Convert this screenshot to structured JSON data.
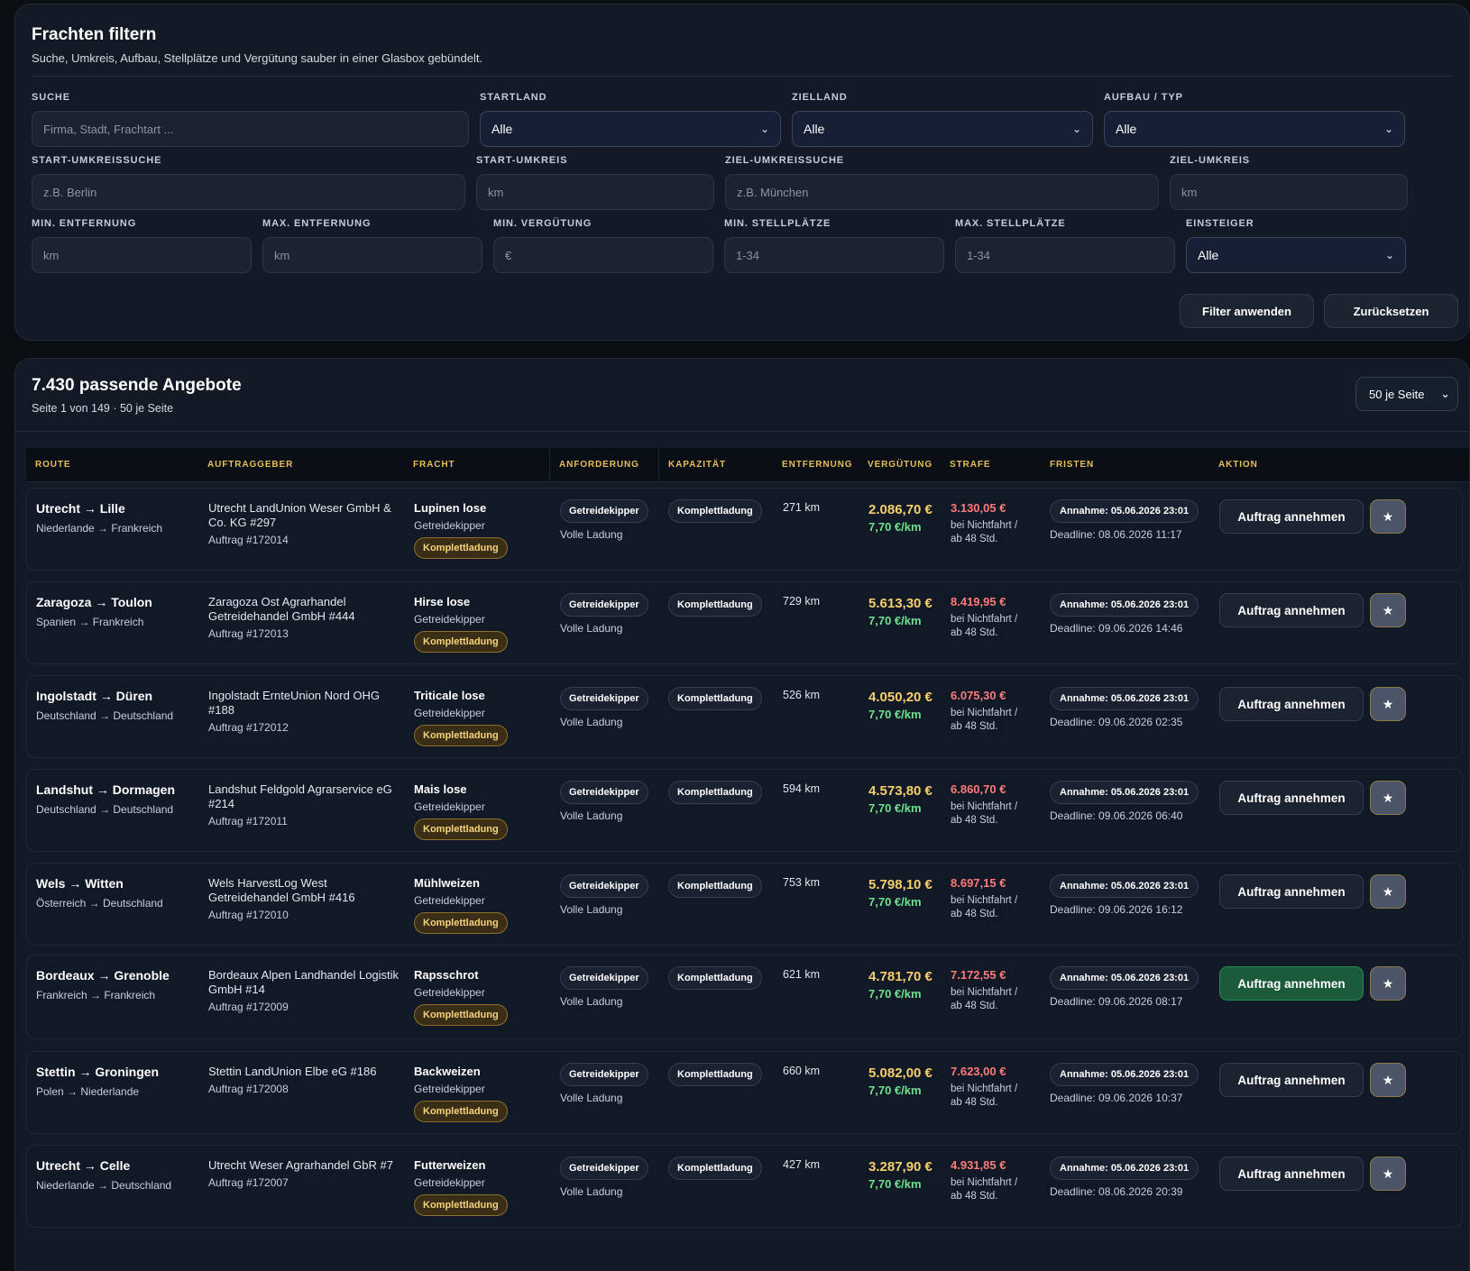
{
  "filter": {
    "title": "Frachten filtern",
    "subtitle": "Suche, Umkreis, Aufbau, Stellplätze und Vergütung sauber in einer Glasbox gebündelt.",
    "search": {
      "label": "SUCHE",
      "placeholder": "Firma, Stadt, Frachtart ..."
    },
    "start_country": {
      "label": "STARTLAND",
      "value": "Alle"
    },
    "target_country": {
      "label": "ZIELLAND",
      "value": "Alle"
    },
    "body_type": {
      "label": "AUFBAU / TYP",
      "value": "Alle"
    },
    "start_radius_search": {
      "label": "START-UMKREISSUCHE",
      "placeholder": "z.B. Berlin"
    },
    "start_radius": {
      "label": "START-UMKREIS",
      "placeholder": "km"
    },
    "target_radius_search": {
      "label": "ZIEL-UMKREISSUCHE",
      "placeholder": "z.B. München"
    },
    "target_radius": {
      "label": "ZIEL-UMKREIS",
      "placeholder": "km"
    },
    "min_distance": {
      "label": "MIN. ENTFERNUNG",
      "placeholder": "km"
    },
    "max_distance": {
      "label": "MAX. ENTFERNUNG",
      "placeholder": "km"
    },
    "min_pay": {
      "label": "MIN. VERGÜTUNG",
      "placeholder": "€"
    },
    "min_slots": {
      "label": "MIN. STELLPLÄTZE",
      "placeholder": "1-34"
    },
    "max_slots": {
      "label": "MAX. STELLPLÄTZE",
      "placeholder": "1-34"
    },
    "beginner": {
      "label": "EINSTEIGER",
      "value": "Alle"
    },
    "apply_label": "Filter anwenden",
    "reset_label": "Zurücksetzen"
  },
  "results": {
    "title": "7.430 passende Angebote",
    "subtitle": "Seite 1 von 149 · 50 je Seite",
    "per_page": "50 je Seite",
    "columns": [
      "ROUTE",
      "AUFTRAGGEBER",
      "FRACHT",
      "ANFORDERUNG",
      "KAPAZITÄT",
      "ENTFERNUNG",
      "VERGÜTUNG",
      "STRAFE",
      "FRISTEN",
      "AKTION"
    ],
    "rows": [
      {
        "route": "Utrecht → Lille",
        "countries": "Niederlande → Frankreich",
        "client": "Utrecht LandUnion Weser GmbH & Co. KG #297",
        "order": "Auftrag #172014",
        "cargo": "Lupinen lose",
        "cargo_type": "Getreidekipper",
        "cargo_badge": "Komplettladung",
        "req": "Getreidekipper",
        "req_sub": "Volle Ladung",
        "capacity": "Komplettladung",
        "distance": "271 km",
        "pay": "2.086,70 €",
        "per_km": "7,70 €/km",
        "penalty": "3.130,05 €",
        "penalty_sub": "bei Nichtfahrt / ab 48 Std.",
        "accept": "Annahme: 05.06.2026 23:01",
        "deadline": "Deadline: 08.06.2026 11:17",
        "action": "Auftrag annehmen",
        "star": "★"
      },
      {
        "route": "Zaragoza → Toulon",
        "countries": "Spanien → Frankreich",
        "client": "Zaragoza Ost Agrarhandel Getreidehandel GmbH #444",
        "order": "Auftrag #172013",
        "cargo": "Hirse lose",
        "cargo_type": "Getreidekipper",
        "cargo_badge": "Komplettladung",
        "req": "Getreidekipper",
        "req_sub": "Volle Ladung",
        "capacity": "Komplettladung",
        "distance": "729 km",
        "pay": "5.613,30 €",
        "per_km": "7,70 €/km",
        "penalty": "8.419,95 €",
        "penalty_sub": "bei Nichtfahrt / ab 48 Std.",
        "accept": "Annahme: 05.06.2026 23:01",
        "deadline": "Deadline: 09.06.2026 14:46",
        "action": "Auftrag annehmen",
        "star": "★"
      },
      {
        "route": "Ingolstadt → Düren",
        "countries": "Deutschland → Deutschland",
        "client": "Ingolstadt ErnteUnion Nord OHG #188",
        "order": "Auftrag #172012",
        "cargo": "Triticale lose",
        "cargo_type": "Getreidekipper",
        "cargo_badge": "Komplettladung",
        "req": "Getreidekipper",
        "req_sub": "Volle Ladung",
        "capacity": "Komplettladung",
        "distance": "526 km",
        "pay": "4.050,20 €",
        "per_km": "7,70 €/km",
        "penalty": "6.075,30 €",
        "penalty_sub": "bei Nichtfahrt / ab 48 Std.",
        "accept": "Annahme: 05.06.2026 23:01",
        "deadline": "Deadline: 09.06.2026 02:35",
        "action": "Auftrag annehmen",
        "star": "★"
      },
      {
        "route": "Landshut → Dormagen",
        "countries": "Deutschland → Deutschland",
        "client": "Landshut Feldgold Agrarservice eG #214",
        "order": "Auftrag #172011",
        "cargo": "Mais lose",
        "cargo_type": "Getreidekipper",
        "cargo_badge": "Komplettladung",
        "req": "Getreidekipper",
        "req_sub": "Volle Ladung",
        "capacity": "Komplettladung",
        "distance": "594 km",
        "pay": "4.573,80 €",
        "per_km": "7,70 €/km",
        "penalty": "6.860,70 €",
        "penalty_sub": "bei Nichtfahrt / ab 48 Std.",
        "accept": "Annahme: 05.06.2026 23:01",
        "deadline": "Deadline: 09.06.2026 06:40",
        "action": "Auftrag annehmen",
        "star": "★"
      },
      {
        "route": "Wels → Witten",
        "countries": "Österreich → Deutschland",
        "client": "Wels HarvestLog West Getreidehandel GmbH #416",
        "order": "Auftrag #172010",
        "cargo": "Mühlweizen",
        "cargo_type": "Getreidekipper",
        "cargo_badge": "Komplettladung",
        "req": "Getreidekipper",
        "req_sub": "Volle Ladung",
        "capacity": "Komplettladung",
        "distance": "753 km",
        "pay": "5.798,10 €",
        "per_km": "7,70 €/km",
        "penalty": "8.697,15 €",
        "penalty_sub": "bei Nichtfahrt / ab 48 Std.",
        "accept": "Annahme: 05.06.2026 23:01",
        "deadline": "Deadline: 09.06.2026 16:12",
        "action": "Auftrag annehmen",
        "star": "★"
      },
      {
        "route": "Bordeaux → Grenoble",
        "countries": "Frankreich → Frankreich",
        "client": "Bordeaux Alpen Landhandel Logistik GmbH #14",
        "order": "Auftrag #172009",
        "cargo": "Rapsschrot",
        "cargo_type": "Getreidekipper",
        "cargo_badge": "Komplettladung",
        "req": "Getreidekipper",
        "req_sub": "Volle Ladung",
        "capacity": "Komplettladung",
        "distance": "621 km",
        "pay": "4.781,70 €",
        "per_km": "7,70 €/km",
        "penalty": "7.172,55 €",
        "penalty_sub": "bei Nichtfahrt / ab 48 Std.",
        "accept": "Annahme: 05.06.2026 23:01",
        "deadline": "Deadline: 09.06.2026 08:17",
        "action": "Auftrag annehmen",
        "star": "★",
        "hovered": true
      },
      {
        "route": "Stettin → Groningen",
        "countries": "Polen → Niederlande",
        "client": "Stettin LandUnion Elbe eG #186",
        "order": "Auftrag #172008",
        "cargo": "Backweizen",
        "cargo_type": "Getreidekipper",
        "cargo_badge": "Komplettladung",
        "req": "Getreidekipper",
        "req_sub": "Volle Ladung",
        "capacity": "Komplettladung",
        "distance": "660 km",
        "pay": "5.082,00 €",
        "per_km": "7,70 €/km",
        "penalty": "7.623,00 €",
        "penalty_sub": "bei Nichtfahrt / ab 48 Std.",
        "accept": "Annahme: 05.06.2026 23:01",
        "deadline": "Deadline: 09.06.2026 10:37",
        "action": "Auftrag annehmen",
        "star": "★"
      },
      {
        "route": "Utrecht → Celle",
        "countries": "Niederlande → Deutschland",
        "client": "Utrecht Weser Agrarhandel GbR #7",
        "order": "Auftrag #172007",
        "cargo": "Futterweizen",
        "cargo_type": "Getreidekipper",
        "cargo_badge": "Komplettladung",
        "req": "Getreidekipper",
        "req_sub": "Volle Ladung",
        "capacity": "Komplettladung",
        "distance": "427 km",
        "pay": "3.287,90 €",
        "per_km": "7,70 €/km",
        "penalty": "4.931,85 €",
        "penalty_sub": "bei Nichtfahrt / ab 48 Std.",
        "accept": "Annahme: 05.06.2026 23:01",
        "deadline": "Deadline: 08.06.2026 20:39",
        "action": "Auftrag annehmen",
        "star": "★"
      }
    ]
  }
}
